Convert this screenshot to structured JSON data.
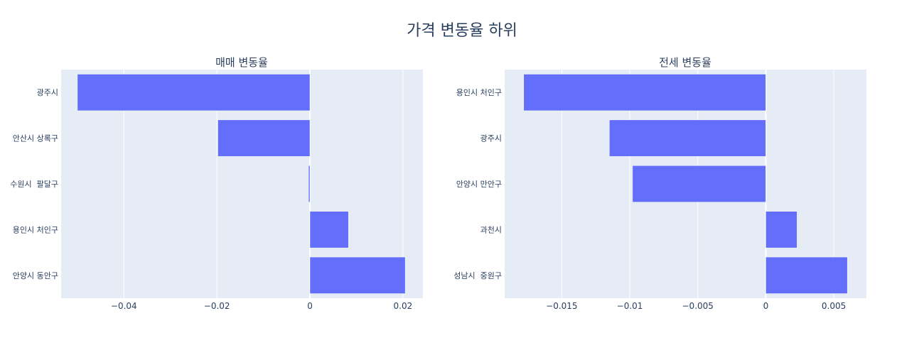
{
  "title": "가격 변동율 하위",
  "colors": {
    "bar": "#636efa",
    "plot_bg": "#e5ecf6",
    "grid": "#ffffff",
    "text": "#2a3f5f"
  },
  "chart_data": [
    {
      "type": "bar",
      "orientation": "horizontal",
      "title": "매매 변동율",
      "categories": [
        "광주시",
        "안산시 상록구",
        "수원시  팔달구",
        "용인시 처인구",
        "안양시 동안구"
      ],
      "values": [
        -0.05,
        -0.0198,
        -0.0003,
        0.0083,
        0.0205
      ],
      "xlim": [
        -0.0535,
        0.0243
      ],
      "xticks": [
        -0.04,
        -0.02,
        0,
        0.02
      ],
      "xtick_labels": [
        "−0.04",
        "−0.02",
        "0",
        "0.02"
      ],
      "grid": true
    },
    {
      "type": "bar",
      "orientation": "horizontal",
      "title": "전세 변동율",
      "categories": [
        "용인시 처인구",
        "광주시",
        "안양시 만안구",
        "과천시",
        "성남시  중원구"
      ],
      "values": [
        -0.0178,
        -0.0115,
        -0.0098,
        0.0023,
        0.006
      ],
      "xlim": [
        -0.0192,
        0.0074
      ],
      "xticks": [
        -0.015,
        -0.01,
        -0.005,
        0,
        0.005
      ],
      "xtick_labels": [
        "−0.015",
        "−0.01",
        "−0.005",
        "0",
        "0.005"
      ],
      "grid": true
    }
  ]
}
